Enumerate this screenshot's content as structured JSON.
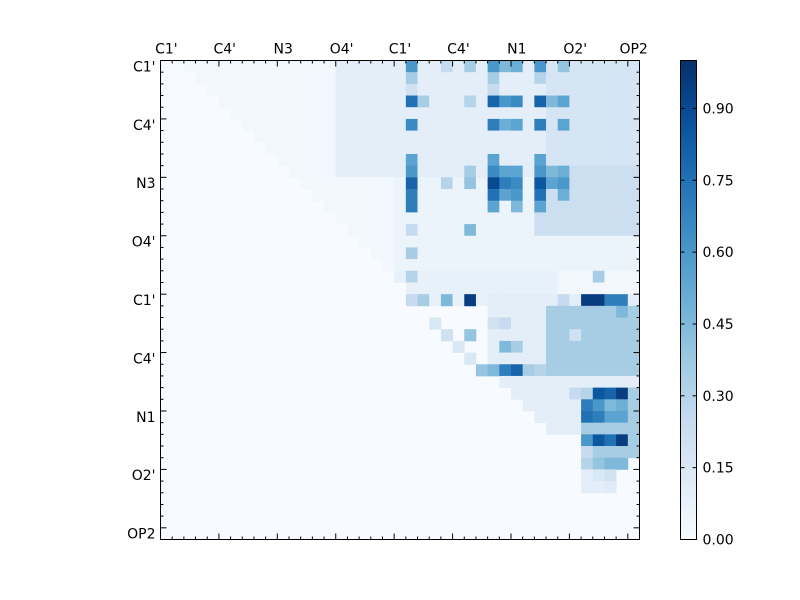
{
  "chart_data": {
    "type": "heatmap",
    "title": "",
    "colormap": "Blues",
    "grid": false,
    "n": 41,
    "x_tick_labels": [
      "C1'",
      "C4'",
      "N3",
      "O4'",
      "C1'",
      "C4'",
      "N1",
      "O2'",
      "OP2"
    ],
    "y_tick_labels": [
      "C1'",
      "C4'",
      "N3",
      "O4'",
      "C1'",
      "C4'",
      "N1",
      "O2'",
      "OP2"
    ],
    "colorbar": {
      "range": [
        0.0,
        1.0
      ],
      "ticks": [
        0.0,
        0.15,
        0.3,
        0.45,
        0.6,
        0.75,
        0.9
      ],
      "tick_labels": [
        "0.00",
        "0.15",
        "0.30",
        "0.45",
        "0.60",
        "0.75",
        "0.90"
      ]
    },
    "patches": [
      {
        "rows": [
          0,
          20
        ],
        "cols": [
          2,
          40
        ],
        "value": 0.03
      },
      {
        "rows": [
          0,
          9
        ],
        "cols": [
          15,
          40
        ],
        "value": 0.1
      },
      {
        "rows": [
          0,
          9
        ],
        "cols": [
          33,
          40
        ],
        "value": 0.17
      },
      {
        "rows": [
          10,
          17
        ],
        "cols": [
          20,
          40
        ],
        "value": 0.06
      },
      {
        "rows": [
          9,
          14
        ],
        "cols": [
          32,
          40
        ],
        "value": 0.22
      },
      {
        "rows": [
          18,
          20
        ],
        "cols": [
          20,
          33
        ],
        "value": 0.08
      },
      {
        "rows": [
          20,
          31
        ],
        "cols": [
          28,
          40
        ],
        "value": 0.1
      },
      {
        "rows": [
          21,
          26
        ],
        "cols": [
          33,
          40
        ],
        "value": 0.35
      },
      {
        "rows": [
          28,
          33
        ],
        "cols": [
          36,
          40
        ],
        "value": 0.35
      }
    ],
    "cells": [
      {
        "r": 0,
        "c": 21,
        "v": 0.6
      },
      {
        "r": 0,
        "c": 28,
        "v": 0.6
      },
      {
        "r": 0,
        "c": 29,
        "v": 0.45
      },
      {
        "r": 0,
        "c": 30,
        "v": 0.5
      },
      {
        "r": 0,
        "c": 32,
        "v": 0.6
      },
      {
        "r": 0,
        "c": 34,
        "v": 0.4
      },
      {
        "r": 0,
        "c": 26,
        "v": 0.35
      },
      {
        "r": 0,
        "c": 24,
        "v": 0.25
      },
      {
        "r": 1,
        "c": 21,
        "v": 0.35
      },
      {
        "r": 1,
        "c": 28,
        "v": 0.35
      },
      {
        "r": 1,
        "c": 32,
        "v": 0.3
      },
      {
        "r": 2,
        "c": 21,
        "v": 0.2
      },
      {
        "r": 2,
        "c": 28,
        "v": 0.25
      },
      {
        "r": 3,
        "c": 21,
        "v": 0.75
      },
      {
        "r": 3,
        "c": 22,
        "v": 0.35
      },
      {
        "r": 3,
        "c": 28,
        "v": 0.8
      },
      {
        "r": 3,
        "c": 29,
        "v": 0.6
      },
      {
        "r": 3,
        "c": 30,
        "v": 0.65
      },
      {
        "r": 3,
        "c": 32,
        "v": 0.8
      },
      {
        "r": 3,
        "c": 33,
        "v": 0.45
      },
      {
        "r": 3,
        "c": 34,
        "v": 0.55
      },
      {
        "r": 3,
        "c": 26,
        "v": 0.3
      },
      {
        "r": 5,
        "c": 21,
        "v": 0.65
      },
      {
        "r": 5,
        "c": 28,
        "v": 0.7
      },
      {
        "r": 5,
        "c": 29,
        "v": 0.5
      },
      {
        "r": 5,
        "c": 30,
        "v": 0.55
      },
      {
        "r": 5,
        "c": 32,
        "v": 0.7
      },
      {
        "r": 5,
        "c": 34,
        "v": 0.55
      },
      {
        "r": 8,
        "c": 21,
        "v": 0.55
      },
      {
        "r": 8,
        "c": 28,
        "v": 0.55
      },
      {
        "r": 8,
        "c": 32,
        "v": 0.55
      },
      {
        "r": 9,
        "c": 21,
        "v": 0.6
      },
      {
        "r": 9,
        "c": 28,
        "v": 0.65
      },
      {
        "r": 9,
        "c": 29,
        "v": 0.55
      },
      {
        "r": 9,
        "c": 30,
        "v": 0.55
      },
      {
        "r": 9,
        "c": 32,
        "v": 0.6
      },
      {
        "r": 9,
        "c": 33,
        "v": 0.45
      },
      {
        "r": 9,
        "c": 34,
        "v": 0.5
      },
      {
        "r": 9,
        "c": 26,
        "v": 0.35
      },
      {
        "r": 10,
        "c": 21,
        "v": 0.8
      },
      {
        "r": 10,
        "c": 28,
        "v": 0.9
      },
      {
        "r": 10,
        "c": 29,
        "v": 0.7
      },
      {
        "r": 10,
        "c": 30,
        "v": 0.65
      },
      {
        "r": 10,
        "c": 32,
        "v": 0.85
      },
      {
        "r": 10,
        "c": 33,
        "v": 0.55
      },
      {
        "r": 10,
        "c": 34,
        "v": 0.6
      },
      {
        "r": 10,
        "c": 26,
        "v": 0.4
      },
      {
        "r": 10,
        "c": 24,
        "v": 0.3
      },
      {
        "r": 11,
        "c": 21,
        "v": 0.7
      },
      {
        "r": 11,
        "c": 28,
        "v": 0.75
      },
      {
        "r": 11,
        "c": 29,
        "v": 0.55
      },
      {
        "r": 11,
        "c": 30,
        "v": 0.6
      },
      {
        "r": 11,
        "c": 32,
        "v": 0.75
      },
      {
        "r": 11,
        "c": 34,
        "v": 0.5
      },
      {
        "r": 12,
        "c": 21,
        "v": 0.7
      },
      {
        "r": 12,
        "c": 28,
        "v": 0.55
      },
      {
        "r": 12,
        "c": 30,
        "v": 0.45
      },
      {
        "r": 12,
        "c": 32,
        "v": 0.55
      },
      {
        "r": 14,
        "c": 26,
        "v": 0.45
      },
      {
        "r": 14,
        "c": 21,
        "v": 0.25
      },
      {
        "r": 16,
        "c": 21,
        "v": 0.35
      },
      {
        "r": 18,
        "c": 21,
        "v": 0.3
      },
      {
        "r": 18,
        "c": 37,
        "v": 0.35
      },
      {
        "r": 20,
        "c": 21,
        "v": 0.25
      },
      {
        "r": 20,
        "c": 22,
        "v": 0.35
      },
      {
        "r": 20,
        "c": 24,
        "v": 0.45
      },
      {
        "r": 20,
        "c": 26,
        "v": 0.95
      },
      {
        "r": 20,
        "c": 34,
        "v": 0.25
      },
      {
        "r": 20,
        "c": 36,
        "v": 0.95
      },
      {
        "r": 20,
        "c": 37,
        "v": 0.95
      },
      {
        "r": 20,
        "c": 38,
        "v": 0.7
      },
      {
        "r": 20,
        "c": 39,
        "v": 0.7
      },
      {
        "r": 21,
        "c": 39,
        "v": 0.45
      },
      {
        "r": 22,
        "c": 23,
        "v": 0.15
      },
      {
        "r": 22,
        "c": 28,
        "v": 0.2
      },
      {
        "r": 22,
        "c": 29,
        "v": 0.25
      },
      {
        "r": 23,
        "c": 24,
        "v": 0.2
      },
      {
        "r": 23,
        "c": 26,
        "v": 0.4
      },
      {
        "r": 23,
        "c": 35,
        "v": 0.2
      },
      {
        "r": 24,
        "c": 25,
        "v": 0.15
      },
      {
        "r": 24,
        "c": 29,
        "v": 0.45
      },
      {
        "r": 24,
        "c": 30,
        "v": 0.35
      },
      {
        "r": 25,
        "c": 26,
        "v": 0.15
      },
      {
        "r": 26,
        "c": 27,
        "v": 0.4
      },
      {
        "r": 26,
        "c": 28,
        "v": 0.45
      },
      {
        "r": 26,
        "c": 29,
        "v": 0.7
      },
      {
        "r": 26,
        "c": 30,
        "v": 0.8
      },
      {
        "r": 26,
        "c": 31,
        "v": 0.35
      },
      {
        "r": 26,
        "c": 32,
        "v": 0.3
      },
      {
        "r": 28,
        "c": 35,
        "v": 0.25
      },
      {
        "r": 28,
        "c": 36,
        "v": 0.3
      },
      {
        "r": 28,
        "c": 37,
        "v": 0.85
      },
      {
        "r": 28,
        "c": 38,
        "v": 0.8
      },
      {
        "r": 28,
        "c": 39,
        "v": 0.95
      },
      {
        "r": 29,
        "c": 36,
        "v": 0.7
      },
      {
        "r": 29,
        "c": 37,
        "v": 0.6
      },
      {
        "r": 29,
        "c": 38,
        "v": 0.45
      },
      {
        "r": 29,
        "c": 39,
        "v": 0.5
      },
      {
        "r": 30,
        "c": 36,
        "v": 0.75
      },
      {
        "r": 30,
        "c": 37,
        "v": 0.7
      },
      {
        "r": 30,
        "c": 38,
        "v": 0.55
      },
      {
        "r": 30,
        "c": 39,
        "v": 0.55
      },
      {
        "r": 32,
        "c": 36,
        "v": 0.6
      },
      {
        "r": 32,
        "c": 37,
        "v": 0.85
      },
      {
        "r": 32,
        "c": 38,
        "v": 0.75
      },
      {
        "r": 32,
        "c": 39,
        "v": 0.95
      },
      {
        "r": 33,
        "c": 36,
        "v": 0.25
      },
      {
        "r": 33,
        "c": 37,
        "v": 0.35
      },
      {
        "r": 33,
        "c": 38,
        "v": 0.35
      },
      {
        "r": 34,
        "c": 36,
        "v": 0.3
      },
      {
        "r": 34,
        "c": 37,
        "v": 0.4
      },
      {
        "r": 34,
        "c": 38,
        "v": 0.45
      },
      {
        "r": 34,
        "c": 39,
        "v": 0.45
      },
      {
        "r": 35,
        "c": 36,
        "v": 0.1
      },
      {
        "r": 35,
        "c": 37,
        "v": 0.15
      },
      {
        "r": 35,
        "c": 38,
        "v": 0.2
      },
      {
        "r": 36,
        "c": 36,
        "v": 0.1
      },
      {
        "r": 36,
        "c": 37,
        "v": 0.1
      },
      {
        "r": 36,
        "c": 38,
        "v": 0.12
      }
    ]
  }
}
